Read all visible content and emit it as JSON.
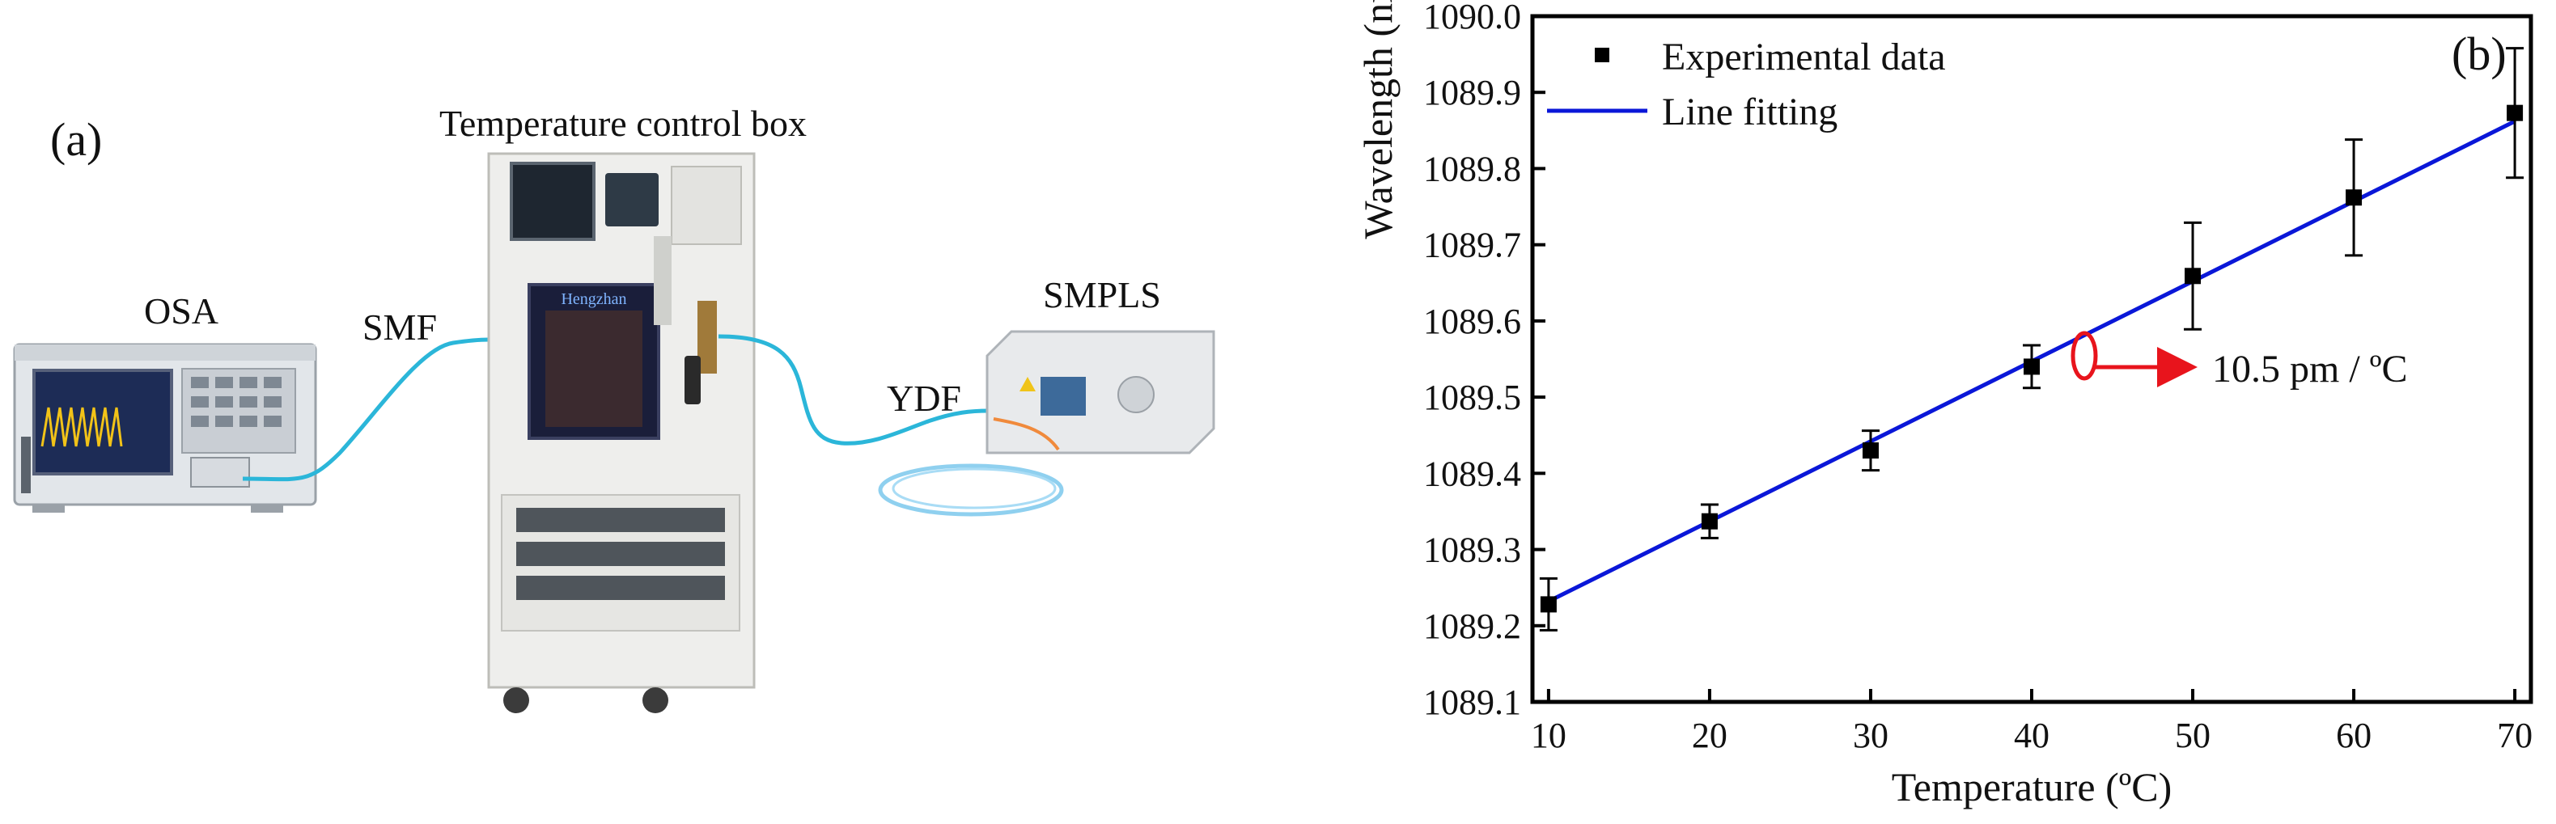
{
  "figure": {
    "panel_a": {
      "panel_label": "(a)",
      "labels": {
        "chamber": "Temperature control box",
        "osa": "OSA",
        "smf": "SMF",
        "ydf": "YDF",
        "smpls": "SMPLS"
      },
      "chamber_brand": "Hengzhan"
    },
    "panel_b": {
      "panel_label": "(b)",
      "annotation": "10.5 pm / ºC"
    }
  },
  "chart_data": {
    "type": "scatter",
    "xlabel": "Temperature (ºC)",
    "ylabel": "Wavelength (nm)",
    "xlim": [
      9,
      71
    ],
    "ylim": [
      1089.1,
      1090.0
    ],
    "xticks": [
      "10",
      "20",
      "30",
      "40",
      "50",
      "60",
      "70"
    ],
    "yticks": [
      "1089.1",
      "1089.2",
      "1089.3",
      "1089.4",
      "1089.5",
      "1089.6",
      "1089.7",
      "1089.8",
      "1089.9",
      "1090.0"
    ],
    "grid": false,
    "legend": {
      "position": "top-left",
      "entries": [
        "Experimental data",
        "Line fitting"
      ]
    },
    "series": [
      {
        "name": "Experimental data",
        "kind": "points_with_error_bars",
        "color": "#000000",
        "x": [
          10,
          20,
          30,
          40,
          50,
          60,
          70
        ],
        "y": [
          1089.228,
          1089.337,
          1089.43,
          1089.54,
          1089.659,
          1089.762,
          1089.873
        ],
        "error": [
          0.034,
          0.022,
          0.026,
          0.028,
          0.07,
          0.076,
          0.085
        ]
      },
      {
        "name": "Line fitting",
        "kind": "line",
        "color": "#0a17d8",
        "x": [
          10,
          70
        ],
        "y": [
          1089.232,
          1089.862
        ]
      }
    ]
  }
}
